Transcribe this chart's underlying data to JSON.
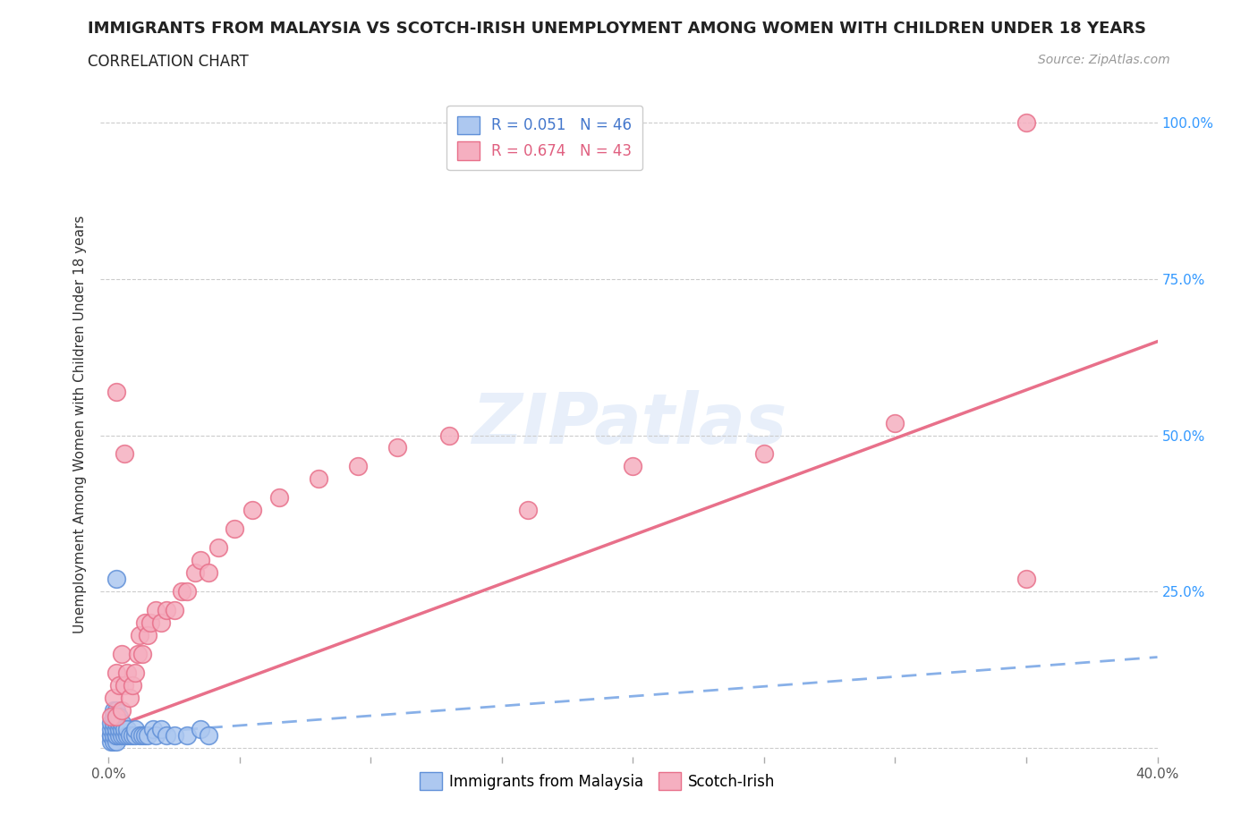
{
  "title": "IMMIGRANTS FROM MALAYSIA VS SCOTCH-IRISH UNEMPLOYMENT AMONG WOMEN WITH CHILDREN UNDER 18 YEARS",
  "subtitle": "CORRELATION CHART",
  "source": "Source: ZipAtlas.com",
  "ylabel": "Unemployment Among Women with Children Under 18 years",
  "xlim": [
    -0.003,
    0.4
  ],
  "ylim": [
    -0.015,
    1.05
  ],
  "xticks": [
    0.0,
    0.05,
    0.1,
    0.15,
    0.2,
    0.25,
    0.3,
    0.35,
    0.4
  ],
  "xtick_labels": [
    "0.0%",
    "",
    "",
    "",
    "",
    "",
    "",
    "",
    "40.0%"
  ],
  "ytick_positions": [
    0.0,
    0.25,
    0.5,
    0.75,
    1.0
  ],
  "ytick_labels": [
    "",
    "25.0%",
    "50.0%",
    "75.0%",
    "100.0%"
  ],
  "legend_r1": "R = 0.051",
  "legend_n1": "N = 46",
  "legend_r2": "R = 0.674",
  "legend_n2": "N = 43",
  "color_malaysia": "#adc8f0",
  "color_scotch": "#f5afc0",
  "color_malaysia_edge": "#6090d8",
  "color_scotch_edge": "#e8708a",
  "color_line_malaysia": "#88b0e8",
  "color_line_scotch": "#e8708a",
  "background_color": "#ffffff",
  "watermark": "ZIPatlas",
  "malaysia_x": [
    0.001,
    0.001,
    0.001,
    0.001,
    0.001,
    0.002,
    0.002,
    0.002,
    0.002,
    0.002,
    0.002,
    0.003,
    0.003,
    0.003,
    0.003,
    0.003,
    0.003,
    0.003,
    0.004,
    0.004,
    0.004,
    0.004,
    0.005,
    0.005,
    0.005,
    0.006,
    0.006,
    0.007,
    0.007,
    0.008,
    0.009,
    0.01,
    0.01,
    0.012,
    0.013,
    0.014,
    0.015,
    0.017,
    0.018,
    0.02,
    0.022,
    0.025,
    0.03,
    0.035,
    0.038,
    0.003
  ],
  "malaysia_y": [
    0.01,
    0.02,
    0.02,
    0.03,
    0.04,
    0.01,
    0.02,
    0.03,
    0.04,
    0.05,
    0.06,
    0.01,
    0.02,
    0.02,
    0.03,
    0.04,
    0.05,
    0.06,
    0.02,
    0.03,
    0.04,
    0.05,
    0.02,
    0.03,
    0.04,
    0.02,
    0.03,
    0.02,
    0.03,
    0.02,
    0.02,
    0.02,
    0.03,
    0.02,
    0.02,
    0.02,
    0.02,
    0.03,
    0.02,
    0.03,
    0.02,
    0.02,
    0.02,
    0.03,
    0.02,
    0.27
  ],
  "scotch_x": [
    0.001,
    0.002,
    0.003,
    0.003,
    0.004,
    0.005,
    0.005,
    0.006,
    0.007,
    0.008,
    0.009,
    0.01,
    0.011,
    0.012,
    0.013,
    0.014,
    0.015,
    0.016,
    0.018,
    0.02,
    0.022,
    0.025,
    0.028,
    0.03,
    0.033,
    0.035,
    0.038,
    0.042,
    0.048,
    0.055,
    0.065,
    0.08,
    0.095,
    0.11,
    0.13,
    0.16,
    0.2,
    0.25,
    0.3,
    0.35,
    0.003,
    0.006,
    0.35
  ],
  "scotch_y": [
    0.05,
    0.08,
    0.05,
    0.12,
    0.1,
    0.06,
    0.15,
    0.1,
    0.12,
    0.08,
    0.1,
    0.12,
    0.15,
    0.18,
    0.15,
    0.2,
    0.18,
    0.2,
    0.22,
    0.2,
    0.22,
    0.22,
    0.25,
    0.25,
    0.28,
    0.3,
    0.28,
    0.32,
    0.35,
    0.38,
    0.4,
    0.43,
    0.45,
    0.48,
    0.5,
    0.38,
    0.45,
    0.47,
    0.52,
    0.27,
    0.57,
    0.47,
    1.0
  ],
  "scotch_line_x0": 0.0,
  "scotch_line_y0": 0.03,
  "scotch_line_x1": 0.4,
  "scotch_line_y1": 0.65,
  "malaysia_line_x0": 0.0,
  "malaysia_line_y0": 0.02,
  "malaysia_line_x1": 0.4,
  "malaysia_line_y1": 0.145
}
